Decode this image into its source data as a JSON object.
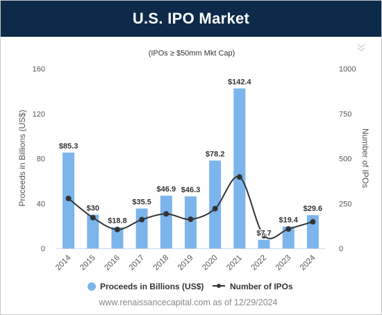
{
  "header": {
    "title": "U.S. IPO Market"
  },
  "chart_data": {
    "type": "bar",
    "subtitle": "(IPOs ≥ $50mm Mkt Cap)",
    "categories": [
      "2014",
      "2015",
      "2016",
      "2017",
      "2018",
      "2019",
      "2020",
      "2021",
      "2022",
      "2023",
      "2024"
    ],
    "series": [
      {
        "name": "Proceeds in Billions (US$)",
        "type": "bar",
        "axis": "left",
        "color": "#7cb5ec",
        "values": [
          85.3,
          30,
          18.8,
          35.5,
          46.9,
          46.3,
          78.2,
          142.4,
          7.7,
          19.4,
          29.6
        ],
        "labels": [
          "$85.3",
          "$30",
          "$18.8",
          "$35.5",
          "$46.9",
          "$46.3",
          "$78.2",
          "$142.4",
          "$7.7",
          "$19.4",
          "$29.6"
        ]
      },
      {
        "name": "Number of IPOs",
        "type": "line",
        "axis": "right",
        "color": "#333333",
        "values": [
          278,
          171,
          105,
          160,
          192,
          162,
          221,
          397,
          71,
          108,
          148
        ]
      }
    ],
    "y_left": {
      "label": "Proceeds in Billions (US$)",
      "min": 0,
      "max": 160,
      "ticks": [
        0,
        40,
        80,
        120,
        160
      ]
    },
    "y_right": {
      "label": "Number of IPOs",
      "min": 0,
      "max": 1000,
      "ticks": [
        0,
        250,
        500,
        750,
        1000
      ]
    },
    "grid": false,
    "legend_position": "bottom"
  },
  "footer": {
    "source": "www.renaissancecapital.com as of 12/29/2024"
  }
}
